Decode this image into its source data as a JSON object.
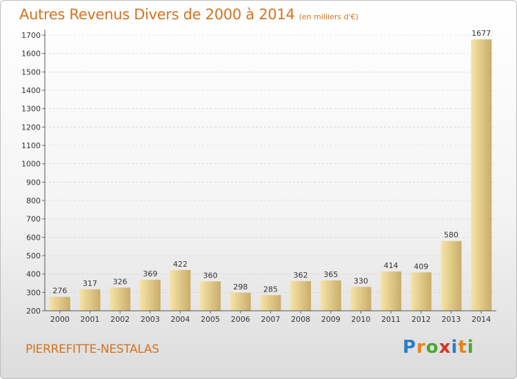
{
  "header": {
    "title": "Autres Revenus Divers de 2000 à 2014",
    "subtitle": "(en milliers d'€)"
  },
  "commune": "PIERREFITTE-NESTALAS",
  "brand": {
    "letters": [
      "P",
      "r",
      "o",
      "x",
      "i",
      "t",
      "i"
    ],
    "colors": [
      "#2a7fc4",
      "#e8821e",
      "#4aa832",
      "#d9322b",
      "#2a7fc4",
      "#e8821e",
      "#4aa832"
    ]
  },
  "chart_data": {
    "type": "bar",
    "categories": [
      "2000",
      "2001",
      "2002",
      "2003",
      "2004",
      "2005",
      "2006",
      "2007",
      "2008",
      "2009",
      "2010",
      "2011",
      "2012",
      "2013",
      "2014"
    ],
    "values": [
      276,
      317,
      326,
      369,
      422,
      360,
      298,
      285,
      362,
      365,
      330,
      414,
      409,
      580,
      1677
    ],
    "title": "Autres Revenus Divers de 2000 à 2014",
    "subtitle": "(en milliers d'€)",
    "ylim": [
      200,
      1700
    ],
    "yticks": [
      200,
      300,
      400,
      500,
      600,
      700,
      800,
      900,
      1000,
      1100,
      1200,
      1300,
      1400,
      1500,
      1600,
      1700
    ],
    "grid": true,
    "bar_color_light": "#f7e4a6",
    "bar_color_dark": "#c9ad6a"
  }
}
